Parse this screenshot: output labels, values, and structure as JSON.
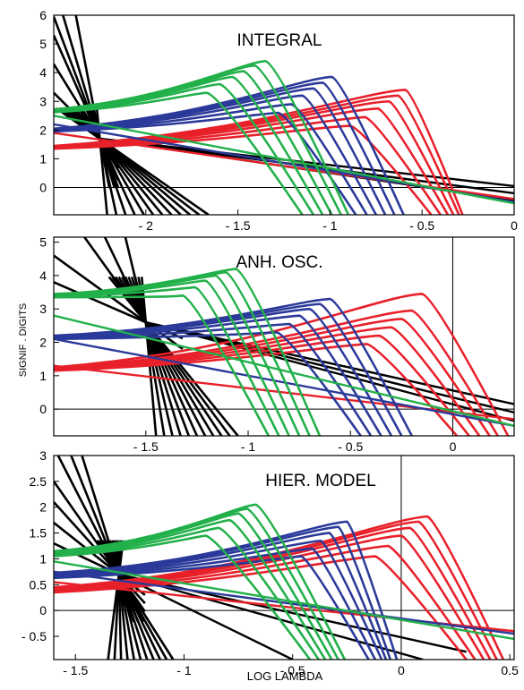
{
  "figure": {
    "ylabel": "SIGNIF . DIGITS",
    "xlabel": "LOG LAMBDA"
  },
  "chart_data": [
    {
      "type": "line",
      "title": "INTEGRAL",
      "xlim": [
        -2.5,
        0
      ],
      "ylim": [
        -0.95,
        6
      ],
      "xticks": [
        -2,
        -1.5,
        -1,
        -0.5,
        0
      ],
      "xtick_labels": [
        "- 2",
        "- 1.5",
        "- 1",
        "- 0.5",
        "0"
      ],
      "yticks": [
        0,
        1,
        2,
        3,
        4,
        5,
        6
      ],
      "ytick_labels": [
        "0",
        "1",
        "2",
        "3",
        "4",
        "5",
        "6"
      ],
      "hline": 0,
      "vline": null,
      "groups": [
        {
          "color": "#e8202a",
          "y_left": 1.35,
          "peak_xs": [
            -0.89,
            -0.81,
            -0.74,
            -0.68,
            -0.63,
            -0.59
          ],
          "peak_ys": [
            2.15,
            2.45,
            2.75,
            3.0,
            3.2,
            3.4
          ],
          "end_xs": [
            -0.45,
            -0.4,
            -0.36,
            -0.33,
            -0.3,
            -0.28
          ],
          "tail_y0": 1.9,
          "tail_y1": -0.4
        },
        {
          "color": "#2b3a9a",
          "y_left": 1.95,
          "peak_xs": [
            -1.28,
            -1.21,
            -1.15,
            -1.09,
            -1.04,
            -0.99
          ],
          "peak_ys": [
            2.6,
            2.9,
            3.2,
            3.45,
            3.65,
            3.85
          ],
          "end_xs": [
            -0.86,
            -0.8,
            -0.75,
            -0.7,
            -0.65,
            -0.6
          ],
          "tail_y0": 2.2,
          "tail_y1": -0.5
        },
        {
          "color": "#22b04a",
          "y_left": 2.62,
          "peak_xs": [
            -1.67,
            -1.6,
            -1.53,
            -1.47,
            -1.41,
            -1.35
          ],
          "peak_ys": [
            3.3,
            3.6,
            3.85,
            4.05,
            4.25,
            4.4
          ],
          "end_xs": [
            -1.15,
            -1.09,
            -1.04,
            -0.99,
            -0.94,
            -0.9
          ],
          "tail_y0": 2.5,
          "tail_y1": -0.55
        }
      ],
      "black_fan": {
        "pivot": [
          -2.25,
          1.7
        ],
        "endpoints": [
          [
            -2.5,
            3.3
          ],
          [
            -2.5,
            4.3
          ],
          [
            -2.5,
            5.3
          ],
          [
            -2.5,
            5.95
          ],
          [
            -2.45,
            6
          ],
          [
            -2.38,
            6
          ],
          [
            -1.66,
            -0.95
          ],
          [
            -1.71,
            -0.95
          ],
          [
            -1.76,
            -0.95
          ],
          [
            -1.81,
            -0.95
          ],
          [
            -1.86,
            -0.95
          ],
          [
            -1.91,
            -0.95
          ],
          [
            -1.96,
            -0.95
          ],
          [
            -2.01,
            -0.95
          ],
          [
            -2.06,
            -0.95
          ],
          [
            -2.11,
            -0.95
          ],
          [
            -2.16,
            -0.95
          ],
          [
            -2.21,
            -0.95
          ]
        ],
        "shallow_far": [
          [
            0,
            -0.45
          ],
          [
            0,
            -0.2
          ],
          [
            0,
            0.05
          ]
        ]
      }
    },
    {
      "type": "line",
      "title": "ANH. OSC.",
      "xlim": [
        -1.95,
        0.3
      ],
      "ylim": [
        -0.8,
        5.15
      ],
      "xticks": [
        -1.5,
        -1,
        -0.5,
        0
      ],
      "xtick_labels": [
        "- 1.5",
        "- 1",
        "- 0.5",
        "0"
      ],
      "yticks": [
        0,
        1,
        2,
        3,
        4,
        5
      ],
      "ytick_labels": [
        "0",
        "1",
        "2",
        "3",
        "4",
        "5"
      ],
      "hline": 0,
      "vline": 0,
      "groups": [
        {
          "color": "#e8202a",
          "y_left": 1.15,
          "peak_xs": [
            -0.42,
            -0.36,
            -0.3,
            -0.25,
            -0.2,
            -0.15
          ],
          "peak_ys": [
            1.95,
            2.2,
            2.45,
            2.7,
            2.95,
            3.45
          ],
          "end_xs": [
            0.02,
            0.08,
            0.13,
            0.18,
            0.22,
            0.27
          ],
          "tail_y0": 1.3,
          "tail_y1": -0.3
        },
        {
          "color": "#2b3a9a",
          "y_left": 2.1,
          "peak_xs": [
            -0.86,
            -0.8,
            -0.75,
            -0.7,
            -0.65,
            -0.6
          ],
          "peak_ys": [
            2.3,
            2.55,
            2.8,
            3.0,
            3.15,
            3.3
          ],
          "end_xs": [
            -0.45,
            -0.4,
            -0.35,
            -0.3,
            -0.25,
            -0.2
          ],
          "tail_y0": 2.1,
          "tail_y1": -0.5
        },
        {
          "color": "#22b04a",
          "y_left": 3.35,
          "peak_xs": [
            -1.32,
            -1.26,
            -1.21,
            -1.16,
            -1.11,
            -1.06
          ],
          "peak_ys": [
            3.4,
            3.65,
            3.85,
            4.0,
            4.1,
            4.2
          ],
          "end_xs": [
            -0.9,
            -0.85,
            -0.8,
            -0.75,
            -0.7,
            -0.65
          ],
          "tail_y0": 2.8,
          "tail_y1": -0.5
        }
      ],
      "black_fan": {
        "pivot": [
          -1.5,
          2.6
        ],
        "endpoints": [
          [
            -1.95,
            3.8
          ],
          [
            -1.95,
            4.6
          ],
          [
            -1.8,
            5.15
          ],
          [
            -1.7,
            5.15
          ],
          [
            -1.6,
            5.15
          ],
          [
            -1.05,
            -0.8
          ],
          [
            -1.09,
            -0.8
          ],
          [
            -1.13,
            -0.8
          ],
          [
            -1.17,
            -0.8
          ],
          [
            -1.21,
            -0.8
          ],
          [
            -1.25,
            -0.8
          ],
          [
            -1.29,
            -0.8
          ],
          [
            -1.33,
            -0.8
          ],
          [
            -1.37,
            -0.8
          ],
          [
            -1.41,
            -0.8
          ],
          [
            -1.45,
            -0.8
          ]
        ],
        "shallow_far": [
          [
            0.3,
            -0.35
          ],
          [
            0.3,
            -0.1
          ],
          [
            0.3,
            0.15
          ]
        ]
      }
    },
    {
      "type": "line",
      "title": "HIER. MODEL",
      "xlim": [
        -1.6,
        0.52
      ],
      "ylim": [
        -0.95,
        3
      ],
      "xticks": [
        -1.5,
        -1,
        -0.5,
        0,
        0.5
      ],
      "xtick_labels": [
        "- 1.5",
        "- 1",
        "- 0.5",
        "0",
        "0.5"
      ],
      "yticks": [
        -0.5,
        0,
        0.5,
        1,
        1.5,
        2,
        2.5,
        3
      ],
      "ytick_labels": [
        "- 0.5",
        "0",
        "0.5",
        "1",
        "1.5",
        "2",
        "2.5",
        "3"
      ],
      "hline": 0,
      "vline": 0,
      "groups": [
        {
          "color": "#e8202a",
          "y_left": 0.35,
          "peak_xs": [
            -0.12,
            -0.06,
            0.0,
            0.04,
            0.08,
            0.12
          ],
          "peak_ys": [
            1.05,
            1.25,
            1.45,
            1.6,
            1.72,
            1.82
          ],
          "end_xs": [
            0.3,
            0.34,
            0.38,
            0.41,
            0.44,
            0.47
          ],
          "tail_y0": 0.55,
          "tail_y1": -0.4
        },
        {
          "color": "#2b3a9a",
          "y_left": 0.63,
          "peak_xs": [
            -0.46,
            -0.41,
            -0.37,
            -0.33,
            -0.29,
            -0.25
          ],
          "peak_ys": [
            1.05,
            1.2,
            1.35,
            1.5,
            1.62,
            1.72
          ],
          "end_xs": [
            -0.15,
            -0.12,
            -0.09,
            -0.07,
            -0.05,
            -0.02
          ],
          "tail_y0": 0.75,
          "tail_y1": -0.45
        },
        {
          "color": "#22b04a",
          "y_left": 1.05,
          "peak_xs": [
            -0.9,
            -0.84,
            -0.79,
            -0.75,
            -0.71,
            -0.67
          ],
          "peak_ys": [
            1.45,
            1.6,
            1.75,
            1.88,
            1.97,
            2.05
          ],
          "end_xs": [
            -0.42,
            -0.38,
            -0.35,
            -0.32,
            -0.29,
            -0.26
          ],
          "tail_y0": 0.95,
          "tail_y1": -0.55
        }
      ],
      "black_fan": {
        "pivot": [
          -1.3,
          0.7
        ],
        "endpoints": [
          [
            -1.6,
            1.3
          ],
          [
            -1.6,
            1.7
          ],
          [
            -1.6,
            2.1
          ],
          [
            -1.6,
            2.5
          ],
          [
            -1.58,
            3
          ],
          [
            -1.52,
            3
          ],
          [
            -1.47,
            3
          ],
          [
            -1.05,
            -0.95
          ],
          [
            -1.08,
            -0.95
          ],
          [
            -1.11,
            -0.95
          ],
          [
            -1.14,
            -0.95
          ],
          [
            -1.17,
            -0.95
          ],
          [
            -1.2,
            -0.95
          ],
          [
            -1.23,
            -0.95
          ],
          [
            -1.26,
            -0.95
          ],
          [
            -1.29,
            -0.95
          ],
          [
            -1.32,
            -0.95
          ],
          [
            -1.35,
            -0.95
          ]
        ],
        "shallow_far": [
          [
            0.1,
            -0.95
          ],
          [
            0.3,
            -0.8
          ],
          [
            -0.5,
            -0.95
          ]
        ]
      }
    }
  ]
}
